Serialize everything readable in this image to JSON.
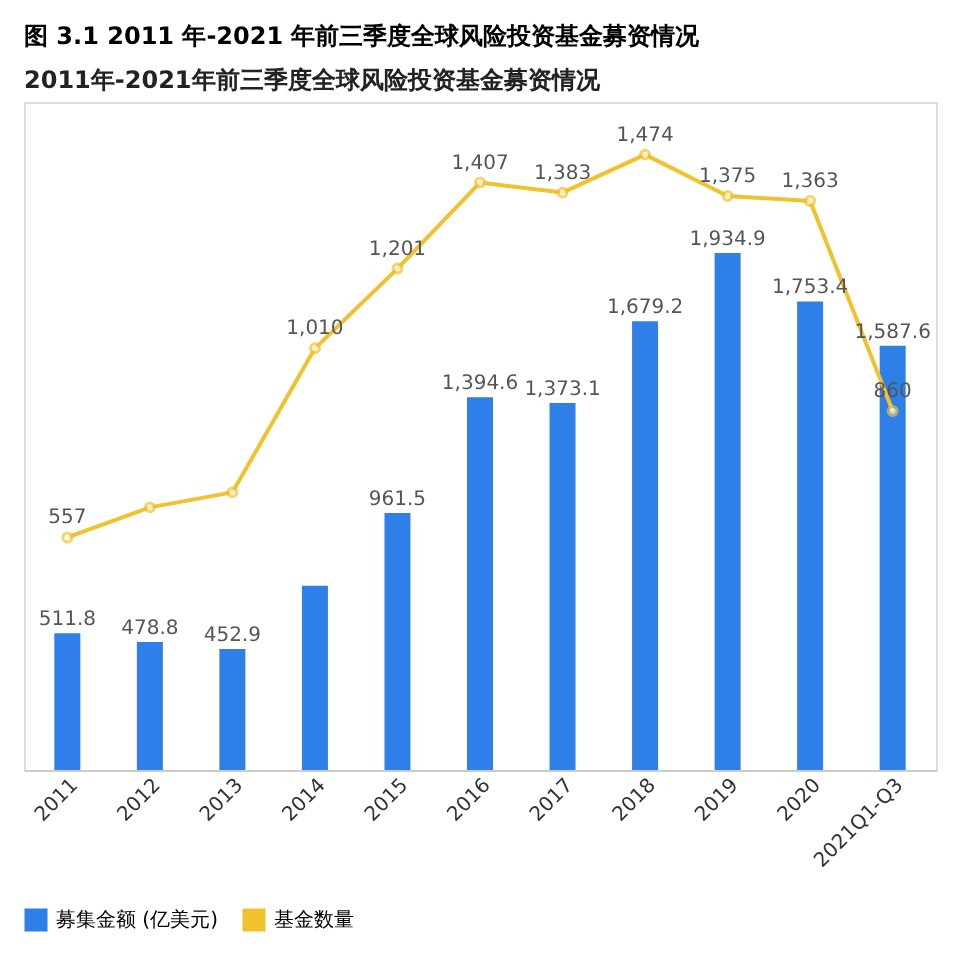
{
  "chart_data": {
    "type": "bar",
    "title": "图 3.1 2011 年-2021 年前三季度全球风险投资基金募资情况",
    "subtitle": "2011年-2021年前三季度全球风险投资基金募资情况",
    "categories": [
      "2011",
      "2012",
      "2013",
      "2014",
      "2015",
      "2016",
      "2017",
      "2018",
      "2019",
      "2020",
      "2021Q1-Q3"
    ],
    "series": [
      {
        "name": "募集金额 (亿美元)",
        "color": "#2f7fe8",
        "values": [
          511.8,
          478.8,
          452.9,
          690,
          961.5,
          1394.6,
          1373.1,
          1679.2,
          1934.9,
          1753.4,
          1587.6
        ],
        "value_labels": [
          "511.8",
          "478.8",
          "452.9",
          null,
          "961.5",
          "1,394.6",
          "1,373.1",
          "1,679.2",
          "1,934.9",
          "1,753.4",
          "1,587.6"
        ]
      },
      {
        "name": "基金数量",
        "type": "line",
        "axis": "y2",
        "color": "#f2c12e",
        "marker": "circle",
        "values": [
          557,
          629,
          665,
          1010,
          1201,
          1407,
          1383,
          1474,
          1375,
          1363,
          860
        ],
        "value_labels": [
          "557",
          null,
          null,
          "1,010",
          "1,201",
          "1,407",
          "1,383",
          "1,474",
          "1,375",
          "1,363",
          "860"
        ]
      }
    ],
    "ylim": [
      0,
      2500
    ],
    "y2lim": [
      0,
      1600
    ],
    "tick_labels": "x",
    "legend": "bottom"
  }
}
